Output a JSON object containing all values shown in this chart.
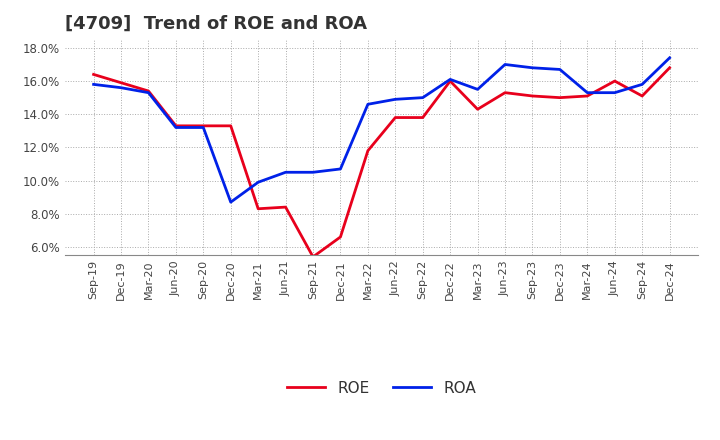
{
  "title": "[4709]  Trend of ROE and ROA",
  "x_labels": [
    "Sep-19",
    "Dec-19",
    "Mar-20",
    "Jun-20",
    "Sep-20",
    "Dec-20",
    "Mar-21",
    "Jun-21",
    "Sep-21",
    "Dec-21",
    "Mar-22",
    "Jun-22",
    "Sep-22",
    "Dec-22",
    "Mar-23",
    "Jun-23",
    "Sep-23",
    "Dec-23",
    "Mar-24",
    "Jun-24",
    "Sep-24",
    "Dec-24"
  ],
  "roe": [
    16.4,
    15.9,
    15.4,
    13.3,
    13.3,
    13.3,
    8.3,
    8.4,
    5.4,
    6.6,
    11.8,
    13.8,
    13.8,
    16.0,
    14.3,
    15.3,
    15.1,
    15.0,
    15.1,
    16.0,
    15.1,
    16.8
  ],
  "roa": [
    15.8,
    15.6,
    15.3,
    13.2,
    13.2,
    8.7,
    9.9,
    10.5,
    10.5,
    10.7,
    14.6,
    14.9,
    15.0,
    16.1,
    15.5,
    17.0,
    16.8,
    16.7,
    15.3,
    15.3,
    15.8,
    17.4
  ],
  "roe_color": "#e8001c",
  "roa_color": "#0021e8",
  "background_color": "#ffffff",
  "grid_color": "#aaaaaa",
  "ylim": [
    5.5,
    18.5
  ],
  "yticks": [
    6.0,
    8.0,
    10.0,
    12.0,
    14.0,
    16.0,
    18.0
  ],
  "title_fontsize": 13,
  "legend_labels": [
    "ROE",
    "ROA"
  ]
}
